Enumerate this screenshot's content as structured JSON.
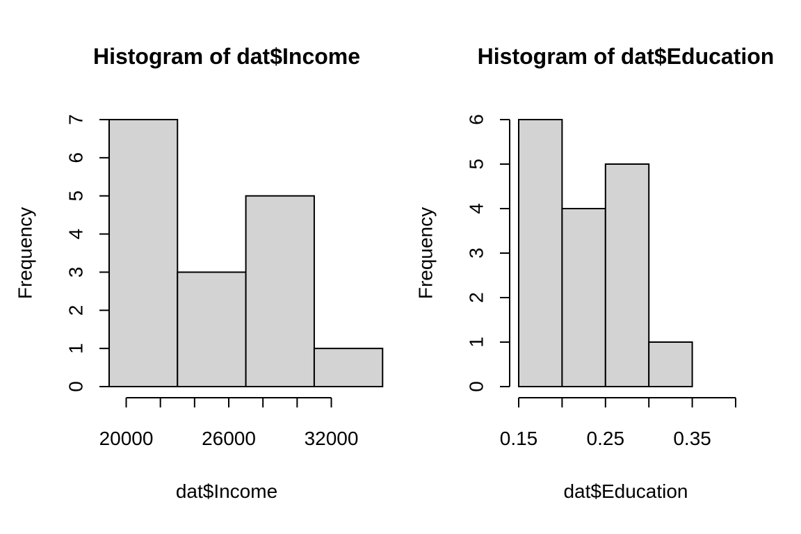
{
  "chart_data": [
    {
      "type": "bar",
      "title": "Histogram of dat$Income",
      "xlabel": "dat$Income",
      "ylabel": "Frequency",
      "bins": [
        {
          "start": 19000,
          "end": 23000,
          "count": 7
        },
        {
          "start": 23000,
          "end": 27000,
          "count": 3
        },
        {
          "start": 27000,
          "end": 31000,
          "count": 5
        },
        {
          "start": 31000,
          "end": 35000,
          "count": 1
        }
      ],
      "xticks": [
        20000,
        22000,
        24000,
        26000,
        28000,
        30000,
        32000
      ],
      "xtick_labels": [
        "20000",
        "",
        "",
        "26000",
        "",
        "",
        "32000"
      ],
      "yticks": [
        0,
        1,
        2,
        3,
        4,
        5,
        6,
        7
      ],
      "ylim": [
        0,
        7
      ],
      "grid": false
    },
    {
      "type": "bar",
      "title": "Histogram of dat$Education",
      "xlabel": "dat$Education",
      "ylabel": "Frequency",
      "bins": [
        {
          "start": 0.15,
          "end": 0.2,
          "count": 6
        },
        {
          "start": 0.2,
          "end": 0.25,
          "count": 4
        },
        {
          "start": 0.25,
          "end": 0.3,
          "count": 5
        },
        {
          "start": 0.3,
          "end": 0.35,
          "count": 1
        }
      ],
      "xticks": [
        0.15,
        0.2,
        0.25,
        0.3,
        0.35,
        0.4
      ],
      "xtick_labels": [
        "0.15",
        "",
        "0.25",
        "",
        "0.35",
        ""
      ],
      "yticks": [
        0,
        1,
        2,
        3,
        4,
        5,
        6
      ],
      "ylim": [
        0,
        6
      ],
      "grid": false
    }
  ]
}
